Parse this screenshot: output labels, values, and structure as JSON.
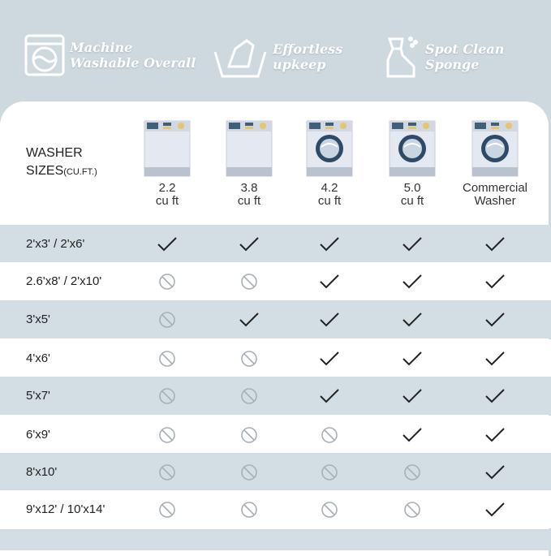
{
  "features": [
    {
      "icon": "washing-machine-icon",
      "line1": "Machine",
      "line2": "Washable Overall"
    },
    {
      "icon": "hand-wash-icon",
      "line1": "Effortless",
      "line2": "upkeep"
    },
    {
      "icon": "spray-bottle-icon",
      "line1": "Spot Clean",
      "line2": "Sponge"
    }
  ],
  "header": {
    "label_line1": "WASHER",
    "label_line2": "SIZES",
    "label_unit": "(CU.FT.)"
  },
  "washers": [
    {
      "line1": "2.2",
      "line2": "cu ft",
      "door": false
    },
    {
      "line1": "3.8",
      "line2": "cu ft",
      "door": false
    },
    {
      "line1": "4.2",
      "line2": "cu ft",
      "door": true
    },
    {
      "line1": "5.0",
      "line2": "cu ft",
      "door": true
    },
    {
      "line1": "Commercial",
      "line2": "Washer",
      "door": true
    }
  ],
  "rows": [
    {
      "size": "2'x3'  / 2'x6'",
      "fits": [
        true,
        true,
        true,
        true,
        true
      ]
    },
    {
      "size": "2.6'x8' / 2'x10'",
      "fits": [
        false,
        false,
        true,
        true,
        true
      ]
    },
    {
      "size": "3'x5'",
      "fits": [
        false,
        true,
        true,
        true,
        true
      ]
    },
    {
      "size": "4'x6'",
      "fits": [
        false,
        false,
        true,
        true,
        true
      ]
    },
    {
      "size": "5'x7'",
      "fits": [
        false,
        false,
        true,
        true,
        true
      ]
    },
    {
      "size": "6'x9'",
      "fits": [
        false,
        false,
        false,
        true,
        true
      ]
    },
    {
      "size": "8'x10'",
      "fits": [
        false,
        false,
        false,
        false,
        true
      ]
    },
    {
      "size": "9'x12' / 10'x14'",
      "fits": [
        false,
        false,
        false,
        false,
        true
      ]
    }
  ],
  "colors": {
    "background": "#cdd8df",
    "row_alt": "#d3dde4",
    "check": "#222222",
    "no": "#a8b0b6",
    "washer_panel": "#3f5f7a"
  }
}
